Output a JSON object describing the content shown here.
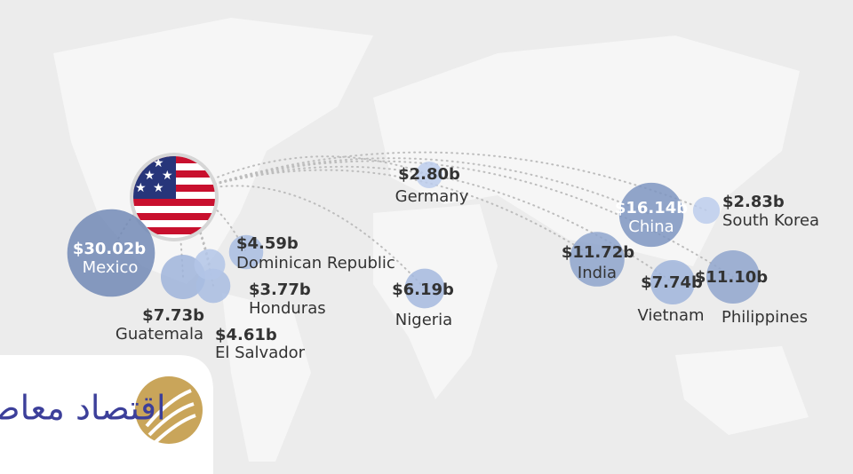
{
  "map": {
    "bubbles": [
      {
        "name": "Mexico",
        "value": 30.02,
        "value_label": "$30.02b",
        "color": "#7289b6"
      },
      {
        "name": "Guatemala",
        "value": 7.73,
        "value_label": "$7.73b",
        "color": "#9fb4db"
      },
      {
        "name": "El Salvador",
        "value": 4.61,
        "value_label": "$4.61b",
        "color": "#a9bde2"
      },
      {
        "name": "Honduras",
        "value": 3.77,
        "value_label": "$3.77b",
        "color": "#b3c6e8"
      },
      {
        "name": "Dominican Republic",
        "value": 4.59,
        "value_label": "$4.59b",
        "color": "#a9bde2"
      },
      {
        "name": "Germany",
        "value": 2.8,
        "value_label": "$2.80b",
        "color": "#bccdec"
      },
      {
        "name": "Nigeria",
        "value": 6.19,
        "value_label": "$6.19b",
        "color": "#a4b8de"
      },
      {
        "name": "India",
        "value": 11.72,
        "value_label": "$11.72b",
        "color": "#8ea4cc"
      },
      {
        "name": "China",
        "value": 16.14,
        "value_label": "$16.14b",
        "color": "#7e95c1"
      },
      {
        "name": "South Korea",
        "value": 2.83,
        "value_label": "$2.83b",
        "color": "#bccdec"
      },
      {
        "name": "Vietnam",
        "value": 7.74,
        "value_label": "$7.74b",
        "color": "#a0b5dc"
      },
      {
        "name": "Philippines",
        "value": 11.1,
        "value_label": "$11.10b",
        "color": "#90a6ce"
      }
    ]
  },
  "logo": {
    "text": "اقتصاد معاصر"
  }
}
